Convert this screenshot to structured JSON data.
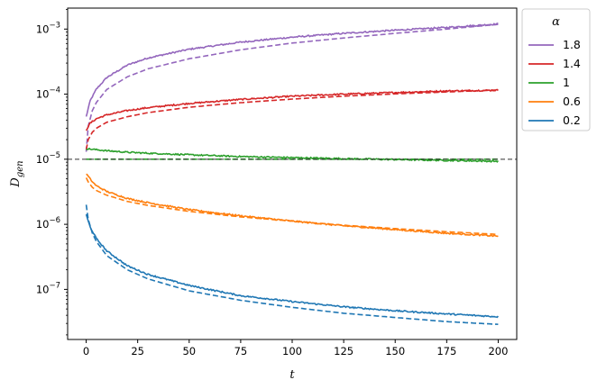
{
  "chart_data": {
    "type": "line",
    "xlabel": "t",
    "ylabel_main": "D",
    "ylabel_sub": "gen",
    "xlim": [
      -9,
      209
    ],
    "ylim": [
      1.7e-08,
      0.0021
    ],
    "yscale": "log",
    "x_ticks": [
      0,
      25,
      50,
      75,
      100,
      125,
      150,
      175,
      200
    ],
    "x_tick_labels": [
      "0",
      "25",
      "50",
      "75",
      "100",
      "125",
      "150",
      "175",
      "200"
    ],
    "y_ticks": [
      1e-07,
      1e-06,
      1e-05,
      0.0001,
      0.001
    ],
    "y_tick_labels": [
      {
        "base": "10",
        "exp": "−7"
      },
      {
        "base": "10",
        "exp": "−6"
      },
      {
        "base": "10",
        "exp": "−5"
      },
      {
        "base": "10",
        "exp": "−4"
      },
      {
        "base": "10",
        "exp": "−3"
      }
    ],
    "reference_line": {
      "y": 1e-05,
      "style": "dashed",
      "color": "#333333"
    },
    "legend": {
      "title": "α",
      "placement": "outside-top-right"
    },
    "series": [
      {
        "name": "1.8",
        "color": "#9467bd",
        "simulated": {
          "x": [
            0,
            2,
            5,
            10,
            20,
            30,
            50,
            75,
            100,
            125,
            150,
            175,
            200
          ],
          "y": [
            4.5e-05,
            8e-05,
            0.00012,
            0.00018,
            0.00028,
            0.00036,
            0.00049,
            0.00063,
            0.00075,
            0.00086,
            0.00096,
            0.00106,
            0.0012
          ]
        },
        "theory": {
          "x": [
            0,
            1,
            3,
            5,
            10,
            20,
            30,
            50,
            75,
            100,
            125,
            150,
            175,
            200
          ],
          "y": [
            1.3e-05,
            3.2e-05,
            5.6e-05,
            7.5e-05,
            0.000118,
            0.000185,
            0.000245,
            0.00035,
            0.00048,
            0.00061,
            0.00073,
            0.00086,
            0.001,
            0.00118
          ]
        }
      },
      {
        "name": "1.4",
        "color": "#d62728",
        "simulated": {
          "x": [
            0,
            2,
            5,
            10,
            20,
            30,
            50,
            75,
            100,
            125,
            150,
            175,
            200
          ],
          "y": [
            2.8e-05,
            3.6e-05,
            4.2e-05,
            4.8e-05,
            5.6e-05,
            6.2e-05,
            7.2e-05,
            8.3e-05,
            9.3e-05,
            0.0001,
            0.000106,
            0.000112,
            0.000115
          ]
        },
        "theory": {
          "x": [
            0,
            1,
            3,
            5,
            10,
            20,
            30,
            50,
            75,
            100,
            125,
            150,
            175,
            200
          ],
          "y": [
            1.4e-05,
            2e-05,
            2.6e-05,
            3e-05,
            3.7e-05,
            4.5e-05,
            5.2e-05,
            6.3e-05,
            7.4e-05,
            8.4e-05,
            9.3e-05,
            0.000101,
            0.000108,
            0.000116
          ]
        }
      },
      {
        "name": "1",
        "color": "#2ca02c",
        "simulated": {
          "x": [
            0,
            5,
            10,
            20,
            30,
            50,
            75,
            100,
            125,
            150,
            175,
            200
          ],
          "y": [
            1.45e-05,
            1.4e-05,
            1.35e-05,
            1.28e-05,
            1.24e-05,
            1.17e-05,
            1.1e-05,
            1.06e-05,
            1.02e-05,
            9.9e-06,
            9.6e-06,
            9.3e-06
          ]
        },
        "theory": {
          "x": [
            0,
            200
          ],
          "y": [
            1e-05,
            1e-05
          ]
        }
      },
      {
        "name": "0.6",
        "color": "#ff7f0e",
        "simulated": {
          "x": [
            0,
            3,
            5,
            10,
            20,
            30,
            50,
            75,
            100,
            125,
            150,
            175,
            200
          ],
          "y": [
            6e-06,
            4.5e-06,
            3.9e-06,
            3.2e-06,
            2.5e-06,
            2.15e-06,
            1.68e-06,
            1.35e-06,
            1.12e-06,
            9.5e-07,
            8.3e-07,
            7.3e-07,
            6.6e-07
          ]
        },
        "theory": {
          "x": [
            0,
            1,
            3,
            5,
            10,
            20,
            30,
            50,
            75,
            100,
            125,
            150,
            175,
            200
          ],
          "y": [
            5.2e-06,
            4.5e-06,
            3.7e-06,
            3.3e-06,
            2.8e-06,
            2.25e-06,
            1.95e-06,
            1.58e-06,
            1.3e-06,
            1.12e-06,
            9.7e-07,
            8.6e-07,
            7.7e-07,
            7e-07
          ]
        }
      },
      {
        "name": "0.2",
        "color": "#1f77b4",
        "simulated": {
          "x": [
            0,
            2,
            5,
            10,
            20,
            30,
            50,
            75,
            100,
            125,
            150,
            175,
            200
          ],
          "y": [
            1.4e-06,
            9e-07,
            6e-07,
            3.9e-07,
            2.3e-07,
            1.7e-07,
            1.15e-07,
            8e-08,
            6.5e-08,
            5.4e-08,
            4.7e-08,
            4.2e-08,
            3.8e-08
          ]
        },
        "theory": {
          "x": [
            0,
            1,
            3,
            5,
            10,
            20,
            30,
            50,
            75,
            100,
            125,
            150,
            175,
            200
          ],
          "y": [
            2e-06,
            1.2e-06,
            7.3e-07,
            5.4e-07,
            3.3e-07,
            2e-07,
            1.45e-07,
            9.5e-08,
            6.8e-08,
            5.3e-08,
            4.3e-08,
            3.7e-08,
            3.2e-08,
            2.9e-08
          ]
        }
      }
    ]
  }
}
